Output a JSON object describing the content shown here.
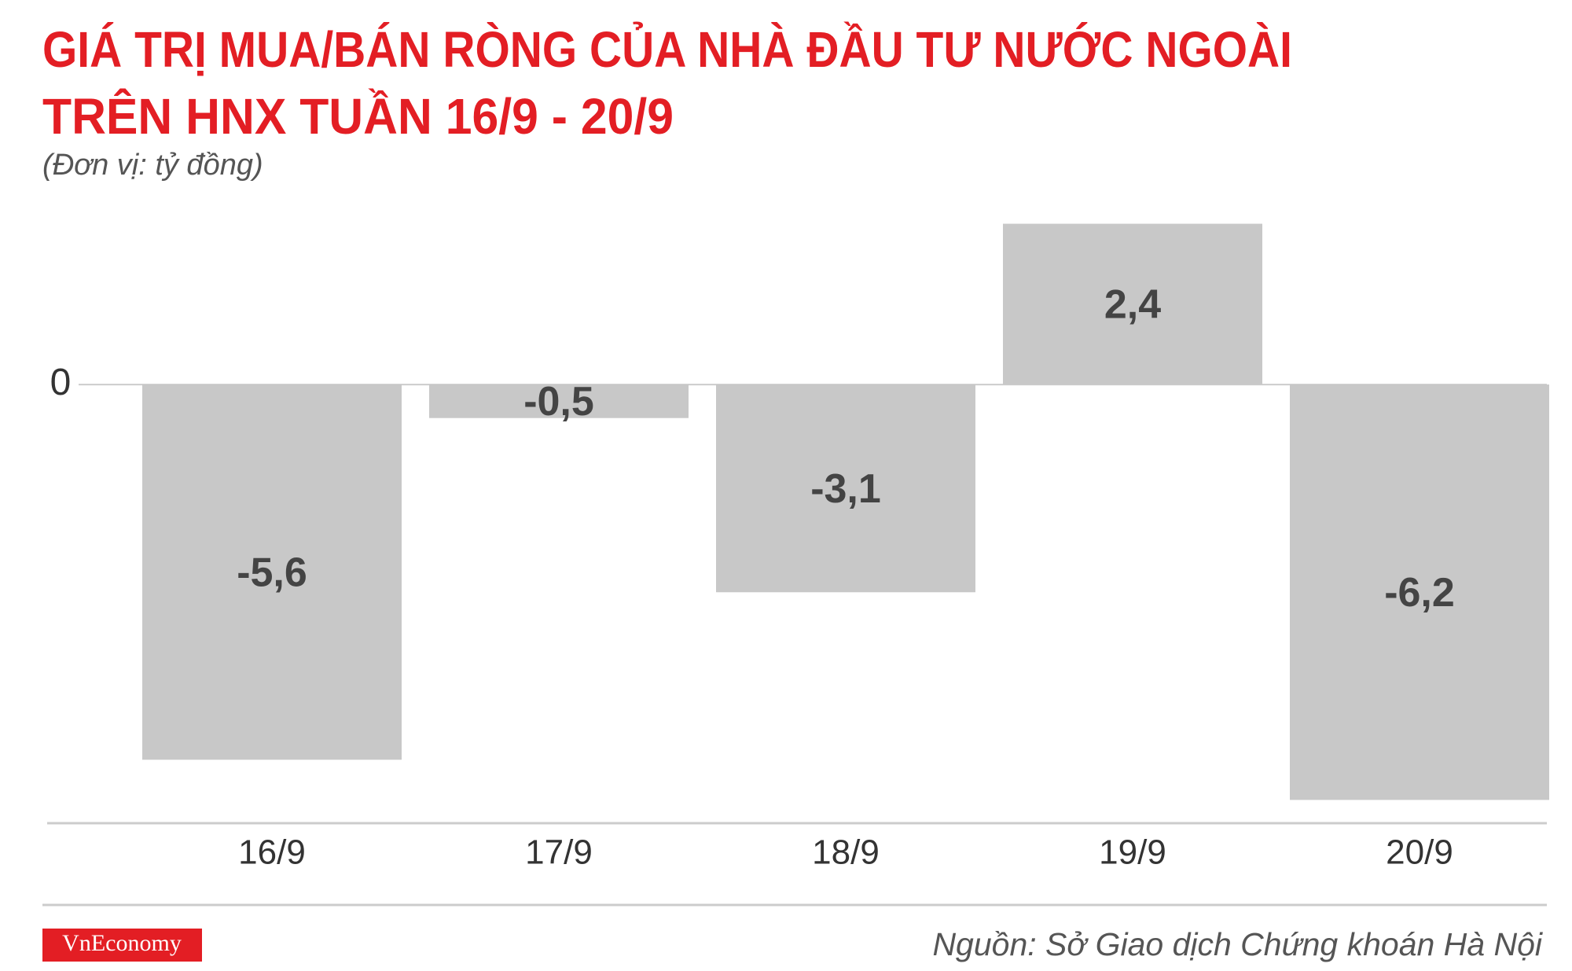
{
  "chart_data": {
    "type": "bar",
    "title": [
      "GIÁ TRỊ MUA/BÁN RÒNG CỦA NHÀ ĐẦU TƯ NƯỚC NGOÀI",
      "TRÊN HNX TUẦN 16/9 - 20/9"
    ],
    "subtitle": "(Đơn vị: tỷ đồng)",
    "categories": [
      "16/9",
      "17/9",
      "18/9",
      "19/9",
      "20/9"
    ],
    "values": [
      -5.6,
      -0.5,
      -3.1,
      2.4,
      -6.2
    ],
    "value_labels": [
      "-5,6",
      "-0,5",
      "-3,1",
      "2,4",
      "-6,2"
    ],
    "color": "#c8c8c8",
    "ylim": [
      -6.5,
      2.7
    ],
    "yticks": [
      0
    ],
    "grid": false,
    "source": "Nguồn: Sở Giao dịch Chứng khoán Hà Nội",
    "brand": "VnEconomy"
  }
}
